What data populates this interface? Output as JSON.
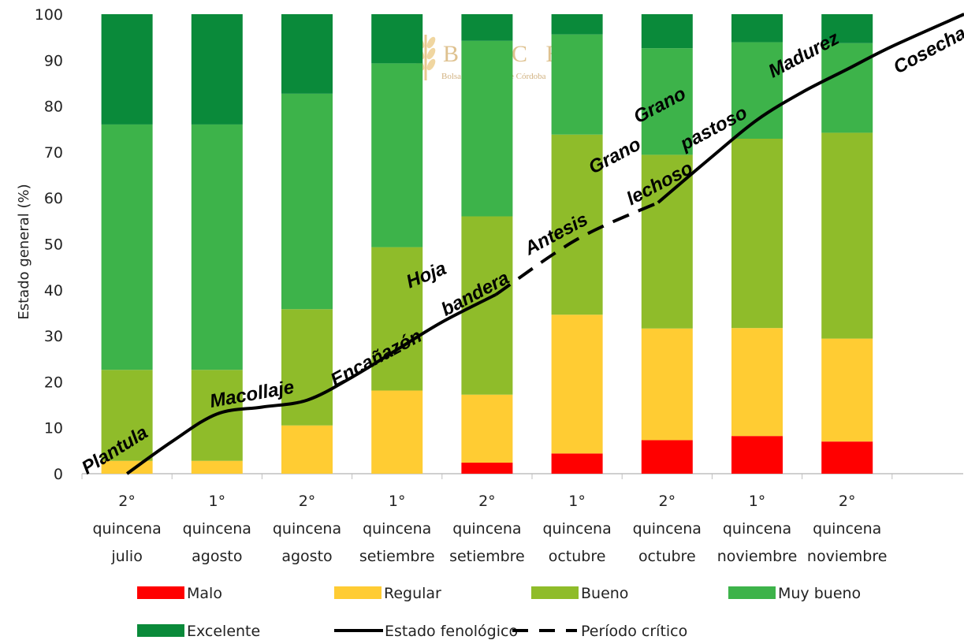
{
  "chart_data": {
    "type": "bar",
    "stacked": true,
    "ylabel": "Estado general (%)",
    "ylim": [
      0,
      100
    ],
    "yticks": [
      0,
      10,
      20,
      30,
      40,
      50,
      60,
      70,
      80,
      90,
      100
    ],
    "categories": [
      [
        "2°",
        "quincena",
        "julio"
      ],
      [
        "1°",
        "quincena",
        "agosto"
      ],
      [
        "2°",
        "quincena",
        "agosto"
      ],
      [
        "1°",
        "quincena",
        "setiembre"
      ],
      [
        "2°",
        "quincena",
        "setiembre"
      ],
      [
        "1°",
        "quincena",
        "octubre"
      ],
      [
        "2°",
        "quincena",
        "octubre"
      ],
      [
        "1°",
        "quincena",
        "noviembre"
      ],
      [
        "2°",
        "quincena",
        "noviembre"
      ]
    ],
    "series": [
      {
        "name": "Malo",
        "color": "#ff0000",
        "values": [
          0,
          0,
          0,
          0,
          2.4,
          4.4,
          7.3,
          8.2,
          7
        ]
      },
      {
        "name": "Regular",
        "color": "#ffcc33",
        "values": [
          2.8,
          2.8,
          10.5,
          18.1,
          14.8,
          30.2,
          24.3,
          23.5,
          22.4
        ]
      },
      {
        "name": "Bueno",
        "color": "#8fbc2a",
        "values": [
          19.8,
          19.8,
          25.3,
          31.2,
          38.8,
          39.2,
          37.8,
          41.2,
          44.8
        ]
      },
      {
        "name": "Muy bueno",
        "color": "#3db34a",
        "values": [
          53.4,
          53.4,
          46.9,
          40,
          38.2,
          21.8,
          23.2,
          21,
          19.5
        ]
      },
      {
        "name": "Excelente",
        "color": "#0a8a3a",
        "values": [
          24,
          24,
          17.3,
          10.7,
          5.8,
          4.4,
          7.4,
          6.1,
          6.3
        ]
      }
    ],
    "line_series": [
      {
        "name": "Estado fenológico",
        "style": "solid",
        "x": [
          0,
          0.5,
          1,
          1.5,
          2,
          2.5,
          3,
          3.5,
          4.1
        ],
        "y": [
          0,
          7,
          13,
          14.5,
          16,
          21,
          27,
          33,
          39
        ]
      },
      {
        "name": "Período crítico",
        "style": "dashed",
        "x": [
          4.1,
          5,
          5.9
        ],
        "y": [
          39,
          51,
          59
        ]
      },
      {
        "name": "Estado fenológico",
        "style": "solid",
        "x": [
          5.9,
          6.5,
          7,
          7.5,
          8,
          8.5,
          9.3
        ],
        "y": [
          59,
          69,
          77,
          83,
          88,
          93,
          100
        ]
      }
    ],
    "annotations": [
      {
        "text": "Plantula",
        "x": -0.1,
        "y": 4,
        "angle": -32
      },
      {
        "text": "Macollaje",
        "x": 1.4,
        "y": 16,
        "angle": -10
      },
      {
        "text": "Encañazón",
        "x": 2.8,
        "y": 24,
        "angle": -28
      },
      {
        "text": "Hoja",
        "x": 3.35,
        "y": 42,
        "angle": -22
      },
      {
        "text": "bandera",
        "x": 3.9,
        "y": 38,
        "angle": -28
      },
      {
        "text": "Antesis",
        "x": 4.8,
        "y": 51,
        "angle": -28
      },
      {
        "text": "Grano",
        "x": 5.45,
        "y": 68,
        "angle": -28
      },
      {
        "text": "lechoso",
        "x": 5.95,
        "y": 62,
        "angle": -28
      },
      {
        "text": "Grano",
        "x": 5.95,
        "y": 79,
        "angle": -28
      },
      {
        "text": "pastoso",
        "x": 6.55,
        "y": 74,
        "angle": -28
      },
      {
        "text": "Madurez",
        "x": 7.55,
        "y": 90,
        "angle": -28
      },
      {
        "text": "Cosecha",
        "x": 8.95,
        "y": 91,
        "angle": -28
      }
    ],
    "legend": [
      {
        "name": "Malo",
        "kind": "box",
        "color": "#ff0000"
      },
      {
        "name": "Regular",
        "kind": "box",
        "color": "#ffcc33"
      },
      {
        "name": "Bueno",
        "kind": "box",
        "color": "#8fbc2a"
      },
      {
        "name": "Muy bueno",
        "kind": "box",
        "color": "#3db34a"
      },
      {
        "name": "Excelente",
        "kind": "box",
        "color": "#0a8a3a"
      },
      {
        "name": "Estado fenológico",
        "kind": "solid-line",
        "color": "#000000"
      },
      {
        "name": "Período crítico",
        "kind": "dashed-line",
        "color": "#000000"
      }
    ],
    "legend_position": "bottom"
  },
  "watermark": {
    "letters": "B C C B A",
    "subtitle": "Bolsa de Cereales de Córdoba",
    "icon": "wheat-ear-icon"
  }
}
